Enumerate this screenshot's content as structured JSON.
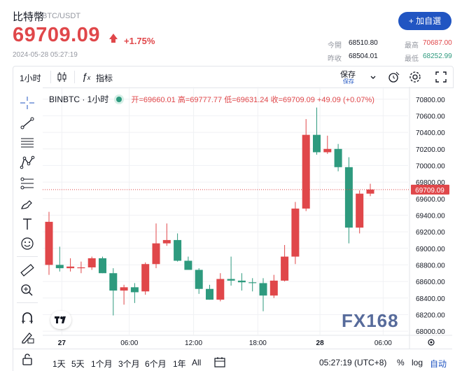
{
  "header": {
    "title": "比特幣",
    "pair": "BTC/USDT",
    "price": "69709.09",
    "change": "+1.75%",
    "datetime": "2024-05-28 05:27:19",
    "watch_button": "+ 加自選",
    "stats": {
      "open_label": "今開",
      "open_value": "68510.80",
      "high_label": "最高",
      "high_value": "70687.00",
      "prev_label": "昨收",
      "prev_value": "68504.01",
      "low_label": "最低",
      "low_value": "68252.99"
    },
    "colors": {
      "up": "#e0474a",
      "down": "#2e9a7e",
      "accent": "#2155c2"
    }
  },
  "toolbar": {
    "interval": "1小时",
    "indicators": "指标",
    "save_label": "保存",
    "save_sub": "保存"
  },
  "legend": {
    "symbol": "BINBTC · 1小时",
    "open": "开=69660.01",
    "high": "高=69777.77",
    "low": "低=69631.24",
    "close": "收=69709.09",
    "change": "+49.09 (+0.07%)"
  },
  "chart_data": {
    "type": "candlestick",
    "symbol": "BINBTC · 1小时",
    "ylim": [
      67950,
      70950
    ],
    "y_ticks": [
      "70800.00",
      "70600.00",
      "70400.00",
      "70200.00",
      "70000.00",
      "69800.00",
      "69600.00",
      "69400.00",
      "69200.00",
      "69000.00",
      "68800.00",
      "68600.00",
      "68400.00",
      "68200.00",
      "68000.00"
    ],
    "x_ticks": [
      "27",
      "06:00",
      "12:00",
      "18:00",
      "28",
      "06:00"
    ],
    "last_price_label": "69709.09",
    "last_price": 69709.09,
    "candles": [
      {
        "o": 68800,
        "h": 69440,
        "l": 68680,
        "c": 69320
      },
      {
        "o": 68800,
        "h": 69020,
        "l": 68720,
        "c": 68760
      },
      {
        "o": 68760,
        "h": 68880,
        "l": 68720,
        "c": 68780
      },
      {
        "o": 68760,
        "h": 68840,
        "l": 68700,
        "c": 68770
      },
      {
        "o": 68770,
        "h": 68900,
        "l": 68740,
        "c": 68880
      },
      {
        "o": 68880,
        "h": 68900,
        "l": 68700,
        "c": 68700
      },
      {
        "o": 68700,
        "h": 68760,
        "l": 68190,
        "c": 68490
      },
      {
        "o": 68490,
        "h": 68560,
        "l": 68320,
        "c": 68530
      },
      {
        "o": 68530,
        "h": 68580,
        "l": 68340,
        "c": 68470
      },
      {
        "o": 68480,
        "h": 68830,
        "l": 68440,
        "c": 68810
      },
      {
        "o": 68810,
        "h": 69300,
        "l": 68760,
        "c": 69060
      },
      {
        "o": 69060,
        "h": 69300,
        "l": 69030,
        "c": 69100
      },
      {
        "o": 69100,
        "h": 69180,
        "l": 68840,
        "c": 68850
      },
      {
        "o": 68850,
        "h": 68900,
        "l": 68760,
        "c": 68740
      },
      {
        "o": 68740,
        "h": 68760,
        "l": 68450,
        "c": 68510
      },
      {
        "o": 68510,
        "h": 68560,
        "l": 68380,
        "c": 68380
      },
      {
        "o": 68380,
        "h": 68700,
        "l": 68360,
        "c": 68630
      },
      {
        "o": 68630,
        "h": 68900,
        "l": 68550,
        "c": 68610
      },
      {
        "o": 68610,
        "h": 68700,
        "l": 68490,
        "c": 68590
      },
      {
        "o": 68590,
        "h": 68640,
        "l": 68480,
        "c": 68580
      },
      {
        "o": 68580,
        "h": 68640,
        "l": 68240,
        "c": 68430
      },
      {
        "o": 68430,
        "h": 68680,
        "l": 68400,
        "c": 68610
      },
      {
        "o": 68610,
        "h": 69040,
        "l": 68600,
        "c": 68900
      },
      {
        "o": 68900,
        "h": 69560,
        "l": 68810,
        "c": 69480
      },
      {
        "o": 69480,
        "h": 70560,
        "l": 69450,
        "c": 70370
      },
      {
        "o": 70370,
        "h": 70700,
        "l": 70130,
        "c": 70160
      },
      {
        "o": 70160,
        "h": 70360,
        "l": 70140,
        "c": 70200
      },
      {
        "o": 70200,
        "h": 70260,
        "l": 69930,
        "c": 69980
      },
      {
        "o": 69980,
        "h": 70100,
        "l": 69060,
        "c": 69250
      },
      {
        "o": 69250,
        "h": 69700,
        "l": 69180,
        "c": 69660
      },
      {
        "o": 69660,
        "h": 69780,
        "l": 69630,
        "c": 69710
      }
    ]
  },
  "bottom": {
    "ranges": [
      "1天",
      "5天",
      "1个月",
      "3个月",
      "6个月",
      "1年",
      "All"
    ],
    "clock": "05:27:19 (UTC+8)",
    "percent": "%",
    "log": "log",
    "auto": "自动"
  },
  "watermark": "FX168"
}
